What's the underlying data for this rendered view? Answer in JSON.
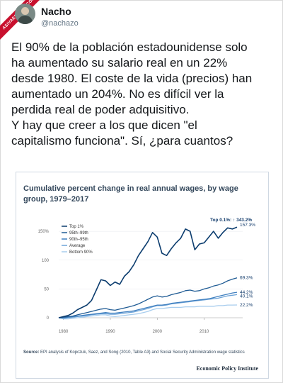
{
  "watermark": "ASIVAESPANA.COM",
  "user": {
    "name": "Nacho",
    "handle": "@nachazo"
  },
  "tweet_text": "El 90% de la población estadounidense solo\nha aumentado su salario real en un 22%\ndesde 1980. El coste de la vida (precios) han\naumentado un 204%. No es difícil ver la\nperdida real de poder adquisitivo.\nY hay que creer a los que dicen \"el\ncapitalismo funciona\". Sí, ¿para cuantos?",
  "chart_data": {
    "type": "line",
    "title": "Cumulative percent change in real annual wages, by wage group, 1979–2017",
    "x": [
      1979,
      1980,
      1981,
      1982,
      1983,
      1984,
      1985,
      1986,
      1987,
      1988,
      1989,
      1990,
      1991,
      1992,
      1993,
      1994,
      1995,
      1996,
      1997,
      1998,
      1999,
      2000,
      2001,
      2002,
      2003,
      2004,
      2005,
      2006,
      2007,
      2008,
      2009,
      2010,
      2011,
      2012,
      2013,
      2014,
      2015,
      2016,
      2017
    ],
    "ylim": [
      0,
      160
    ],
    "yticks": [
      "0",
      "50",
      "100",
      "150%"
    ],
    "xticks": [
      "1980",
      "1990",
      "2000",
      "2010"
    ],
    "series": [
      {
        "name": "Top 1%",
        "color": "#0b3c6e",
        "values": [
          0,
          2,
          4,
          8,
          14,
          18,
          22,
          30,
          48,
          66,
          64,
          56,
          62,
          58,
          72,
          80,
          92,
          108,
          120,
          132,
          148,
          140,
          112,
          108,
          120,
          130,
          138,
          154,
          150,
          118,
          128,
          130,
          140,
          150,
          138,
          148,
          156,
          154,
          157.3
        ],
        "end_label": "157.3%"
      },
      {
        "name": "95th–99th",
        "color": "#1f5b94",
        "values": [
          0,
          1,
          2,
          3,
          5,
          7,
          9,
          11,
          13,
          15,
          16,
          14,
          13,
          15,
          17,
          19,
          21,
          24,
          28,
          32,
          36,
          38,
          36,
          37,
          40,
          42,
          44,
          47,
          48,
          46,
          47,
          50,
          52,
          55,
          57,
          60,
          64,
          67,
          69.3
        ],
        "end_label": "69.3%"
      },
      {
        "name": "90th–95th",
        "color": "#3f7fbf",
        "values": [
          0,
          0,
          1,
          2,
          3,
          4,
          5,
          6,
          7,
          8,
          9,
          8,
          8,
          9,
          10,
          11,
          12,
          14,
          16,
          18,
          20,
          22,
          22,
          23,
          25,
          26,
          27,
          28,
          29,
          30,
          31,
          32,
          33,
          35,
          37,
          39,
          41,
          43,
          44.2
        ],
        "end_label": "44.2%"
      },
      {
        "name": "Average",
        "color": "#6ea4d8",
        "values": [
          0,
          -1,
          0,
          1,
          2,
          3,
          4,
          5,
          6,
          7,
          7,
          6,
          6,
          7,
          8,
          9,
          10,
          12,
          14,
          16,
          19,
          21,
          21,
          22,
          24,
          25,
          26,
          27,
          28,
          29,
          30,
          31,
          32,
          33,
          34,
          36,
          38,
          39,
          40.1
        ],
        "end_label": "40.1%"
      },
      {
        "name": "Bottom 90%",
        "color": "#a8cdee",
        "values": [
          0,
          -2,
          -2,
          -1,
          0,
          1,
          2,
          3,
          4,
          5,
          5,
          3,
          2,
          3,
          4,
          5,
          6,
          7,
          9,
          11,
          14,
          16,
          16,
          17,
          18,
          18,
          18,
          19,
          19,
          19,
          20,
          20,
          20,
          20,
          21,
          21,
          22,
          22,
          22.2
        ],
        "end_label": "22.2%"
      }
    ],
    "annotation": "Top 0.1%: ↑ 343.2%",
    "source_label": "Source:",
    "source_text": " EPI analysis of Kopczuk, Saez, and Song (2010, Table A3) and Social Security Administration wage statistics",
    "publisher": "Economic Policy Institute"
  }
}
